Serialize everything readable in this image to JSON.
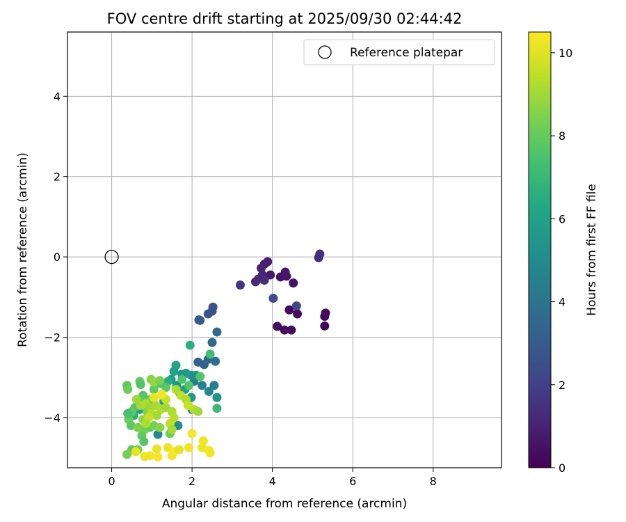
{
  "chart_data": {
    "type": "scatter",
    "title": "FOV centre drift starting at 2025/09/30 02:44:42",
    "xlabel": "Angular distance from reference (arcmin)",
    "ylabel": "Rotation from reference (arcmin)",
    "xlim": [
      -1.1,
      9.7
    ],
    "ylim": [
      -5.25,
      5.6
    ],
    "xticks": [
      0,
      2,
      4,
      6,
      8
    ],
    "yticks": [
      -4,
      -2,
      0,
      2,
      4
    ],
    "xtick_labels": [
      "0",
      "2",
      "4",
      "6",
      "8"
    ],
    "ytick_labels": [
      "−4",
      "−2",
      "0",
      "2",
      "4"
    ],
    "grid": true,
    "legend": {
      "position": "top-right",
      "entries": [
        "Reference platepar"
      ]
    },
    "reference_point": {
      "x": 0,
      "y": 0,
      "label": "Reference platepar"
    },
    "colorbar": {
      "label": "Hours from first FF file",
      "range": [
        0,
        10.5
      ],
      "ticks": [
        0,
        2,
        4,
        6,
        8,
        10
      ],
      "tick_labels": [
        "0",
        "2",
        "4",
        "6",
        "8",
        "10"
      ],
      "colormap": "viridis"
    },
    "points": [
      {
        "x": 5.3,
        "y": -1.72,
        "hours": 0.1
      },
      {
        "x": 5.3,
        "y": -1.48,
        "hours": 0.15
      },
      {
        "x": 5.32,
        "y": -1.4,
        "hours": 0.2
      },
      {
        "x": 4.62,
        "y": -1.42,
        "hours": 0.2
      },
      {
        "x": 4.42,
        "y": -1.32,
        "hours": 0.25
      },
      {
        "x": 4.47,
        "y": -1.82,
        "hours": 0.3
      },
      {
        "x": 4.3,
        "y": -1.82,
        "hours": 0.3
      },
      {
        "x": 4.12,
        "y": -1.73,
        "hours": 0.35
      },
      {
        "x": 4.52,
        "y": -0.65,
        "hours": 0.5
      },
      {
        "x": 4.35,
        "y": -0.48,
        "hours": 0.6
      },
      {
        "x": 4.32,
        "y": -0.38,
        "hours": 0.7
      },
      {
        "x": 4.2,
        "y": -0.5,
        "hours": 0.6
      },
      {
        "x": 3.95,
        "y": -0.45,
        "hours": 0.8
      },
      {
        "x": 3.88,
        "y": -0.12,
        "hours": 0.9
      },
      {
        "x": 3.8,
        "y": -0.18,
        "hours": 0.9
      },
      {
        "x": 3.72,
        "y": -0.28,
        "hours": 1.0
      },
      {
        "x": 3.75,
        "y": -0.45,
        "hours": 1.1
      },
      {
        "x": 3.65,
        "y": -0.55,
        "hours": 1.2
      },
      {
        "x": 3.58,
        "y": -0.62,
        "hours": 1.3
      },
      {
        "x": 3.8,
        "y": -0.58,
        "hours": 1.3
      },
      {
        "x": 5.18,
        "y": 0.07,
        "hours": 1.4
      },
      {
        "x": 5.15,
        "y": -0.02,
        "hours": 1.4
      },
      {
        "x": 3.2,
        "y": -0.7,
        "hours": 1.6
      },
      {
        "x": 4.6,
        "y": -1.22,
        "hours": 2.2
      },
      {
        "x": 4.02,
        "y": -1.03,
        "hours": 2.4
      },
      {
        "x": 2.52,
        "y": -1.25,
        "hours": 2.6
      },
      {
        "x": 2.5,
        "y": -1.35,
        "hours": 2.6
      },
      {
        "x": 2.4,
        "y": -1.42,
        "hours": 2.8
      },
      {
        "x": 2.17,
        "y": -1.57,
        "hours": 2.9
      },
      {
        "x": 2.2,
        "y": -1.58,
        "hours": 3.0
      },
      {
        "x": 2.62,
        "y": -1.87,
        "hours": 3.6
      },
      {
        "x": 2.5,
        "y": -2.13,
        "hours": 3.5
      },
      {
        "x": 2.3,
        "y": -2.68,
        "hours": 3.2
      },
      {
        "x": 2.15,
        "y": -2.62,
        "hours": 3.4
      },
      {
        "x": 2.4,
        "y": -2.55,
        "hours": 3.6
      },
      {
        "x": 2.58,
        "y": -2.6,
        "hours": 3.8
      },
      {
        "x": 2.25,
        "y": -3.2,
        "hours": 4.6
      },
      {
        "x": 2.42,
        "y": -3.35,
        "hours": 4.8
      },
      {
        "x": 2.55,
        "y": -3.2,
        "hours": 4.5
      },
      {
        "x": 2.62,
        "y": -3.5,
        "hours": 5.3
      },
      {
        "x": 2.1,
        "y": -2.95,
        "hours": 5.2
      },
      {
        "x": 2.05,
        "y": -3.1,
        "hours": 4.4
      },
      {
        "x": 1.98,
        "y": -2.95,
        "hours": 5.2
      },
      {
        "x": 1.85,
        "y": -2.9,
        "hours": 5.7
      },
      {
        "x": 1.75,
        "y": -2.92,
        "hours": 5.4
      },
      {
        "x": 1.6,
        "y": -2.7,
        "hours": 6.2
      },
      {
        "x": 1.55,
        "y": -2.85,
        "hours": 6.0
      },
      {
        "x": 1.48,
        "y": -3.05,
        "hours": 5.8
      },
      {
        "x": 1.4,
        "y": -3.1,
        "hours": 6.5
      },
      {
        "x": 1.62,
        "y": -3.2,
        "hours": 5.6
      },
      {
        "x": 1.7,
        "y": -3.4,
        "hours": 5.1
      },
      {
        "x": 1.82,
        "y": -3.3,
        "hours": 5.9
      },
      {
        "x": 1.98,
        "y": -3.5,
        "hours": 5.5
      },
      {
        "x": 2.0,
        "y": -3.8,
        "hours": 5.0
      },
      {
        "x": 1.65,
        "y": -4.2,
        "hours": 5.2
      },
      {
        "x": 1.15,
        "y": -4.42,
        "hours": 4.9
      },
      {
        "x": 0.45,
        "y": -4.0,
        "hours": 4.8
      },
      {
        "x": 0.7,
        "y": -3.8,
        "hours": 5.7
      },
      {
        "x": 0.55,
        "y": -3.95,
        "hours": 6.6
      },
      {
        "x": 1.3,
        "y": -3.6,
        "hours": 6.0
      },
      {
        "x": 1.95,
        "y": -2.2,
        "hours": 6.6
      },
      {
        "x": 2.45,
        "y": -2.42,
        "hours": 7.3
      },
      {
        "x": 2.62,
        "y": -3.77,
        "hours": 7.1
      },
      {
        "x": 2.2,
        "y": -2.98,
        "hours": 7.6
      },
      {
        "x": 1.92,
        "y": -3.2,
        "hours": 7.7
      },
      {
        "x": 1.75,
        "y": -3.05,
        "hours": 7.5
      },
      {
        "x": 1.35,
        "y": -3.25,
        "hours": 7.8
      },
      {
        "x": 1.2,
        "y": -3.15,
        "hours": 7.5
      },
      {
        "x": 1.05,
        "y": -3.3,
        "hours": 7.9
      },
      {
        "x": 0.95,
        "y": -3.55,
        "hours": 8.2
      },
      {
        "x": 0.78,
        "y": -3.45,
        "hours": 7.7
      },
      {
        "x": 0.68,
        "y": -3.6,
        "hours": 8.0
      },
      {
        "x": 0.58,
        "y": -3.75,
        "hours": 7.6
      },
      {
        "x": 0.5,
        "y": -3.85,
        "hours": 7.9
      },
      {
        "x": 0.42,
        "y": -4.05,
        "hours": 8.1
      },
      {
        "x": 0.48,
        "y": -4.2,
        "hours": 7.8
      },
      {
        "x": 0.4,
        "y": -3.9,
        "hours": 7.4
      },
      {
        "x": 0.38,
        "y": -3.2,
        "hours": 7.9
      },
      {
        "x": 0.4,
        "y": -3.3,
        "hours": 8.1
      },
      {
        "x": 0.7,
        "y": -3.1,
        "hours": 8.0
      },
      {
        "x": 0.72,
        "y": -3.18,
        "hours": 7.6
      },
      {
        "x": 0.98,
        "y": -3.05,
        "hours": 8.6
      },
      {
        "x": 1.05,
        "y": -3.12,
        "hours": 8.8
      },
      {
        "x": 1.2,
        "y": -3.08,
        "hours": 8.4
      },
      {
        "x": 0.88,
        "y": -3.85,
        "hours": 8.5
      },
      {
        "x": 0.78,
        "y": -4.05,
        "hours": 8.7
      },
      {
        "x": 0.65,
        "y": -4.25,
        "hours": 8.4
      },
      {
        "x": 0.82,
        "y": -4.3,
        "hours": 8.2
      },
      {
        "x": 0.95,
        "y": -4.25,
        "hours": 8.0
      },
      {
        "x": 1.05,
        "y": -4.2,
        "hours": 8.3
      },
      {
        "x": 1.2,
        "y": -4.25,
        "hours": 8.6
      },
      {
        "x": 1.45,
        "y": -4.4,
        "hours": 8.1
      },
      {
        "x": 0.75,
        "y": -4.45,
        "hours": 7.9
      },
      {
        "x": 0.8,
        "y": -4.6,
        "hours": 7.7
      },
      {
        "x": 0.65,
        "y": -4.8,
        "hours": 8.2
      },
      {
        "x": 0.5,
        "y": -4.8,
        "hours": 8.0
      },
      {
        "x": 0.38,
        "y": -4.92,
        "hours": 8.3
      },
      {
        "x": 0.62,
        "y": -3.55,
        "hours": 8.9
      },
      {
        "x": 0.72,
        "y": -3.7,
        "hours": 9.0
      },
      {
        "x": 0.85,
        "y": -3.65,
        "hours": 9.2
      },
      {
        "x": 0.95,
        "y": -3.75,
        "hours": 8.9
      },
      {
        "x": 1.1,
        "y": -3.7,
        "hours": 9.1
      },
      {
        "x": 1.22,
        "y": -3.8,
        "hours": 9.3
      },
      {
        "x": 1.35,
        "y": -3.75,
        "hours": 9.0
      },
      {
        "x": 1.5,
        "y": -3.85,
        "hours": 9.2
      },
      {
        "x": 1.55,
        "y": -4.0,
        "hours": 9.4
      },
      {
        "x": 1.45,
        "y": -4.15,
        "hours": 9.5
      },
      {
        "x": 1.5,
        "y": -4.3,
        "hours": 9.1
      },
      {
        "x": 1.0,
        "y": -3.9,
        "hours": 9.4
      },
      {
        "x": 1.12,
        "y": -3.95,
        "hours": 9.0
      },
      {
        "x": 0.92,
        "y": -4.0,
        "hours": 9.6
      },
      {
        "x": 0.85,
        "y": -4.15,
        "hours": 9.2
      },
      {
        "x": 1.6,
        "y": -3.3,
        "hours": 9.2
      },
      {
        "x": 1.72,
        "y": -3.45,
        "hours": 9.5
      },
      {
        "x": 1.85,
        "y": -3.55,
        "hours": 9.3
      },
      {
        "x": 1.9,
        "y": -3.7,
        "hours": 9.6
      },
      {
        "x": 2.05,
        "y": -3.8,
        "hours": 9.4
      },
      {
        "x": 2.15,
        "y": -3.85,
        "hours": 9.0
      },
      {
        "x": 1.25,
        "y": -3.45,
        "hours": 9.8
      },
      {
        "x": 1.05,
        "y": -3.5,
        "hours": 10.1
      },
      {
        "x": 1.35,
        "y": -3.55,
        "hours": 9.6
      },
      {
        "x": 0.95,
        "y": -4.95,
        "hours": 10.3
      },
      {
        "x": 0.82,
        "y": -4.97,
        "hours": 10.2
      },
      {
        "x": 1.15,
        "y": -4.98,
        "hours": 10.4
      },
      {
        "x": 1.5,
        "y": -4.95,
        "hours": 10.3
      },
      {
        "x": 1.4,
        "y": -4.75,
        "hours": 10.2
      },
      {
        "x": 1.55,
        "y": -4.85,
        "hours": 10.4
      },
      {
        "x": 1.68,
        "y": -4.8,
        "hours": 10.1
      },
      {
        "x": 1.92,
        "y": -4.75,
        "hours": 10.3
      },
      {
        "x": 2.0,
        "y": -4.4,
        "hours": 10.4
      },
      {
        "x": 2.28,
        "y": -4.58,
        "hours": 10.3
      },
      {
        "x": 2.25,
        "y": -4.75,
        "hours": 10.2
      },
      {
        "x": 2.42,
        "y": -4.82,
        "hours": 10.4
      },
      {
        "x": 2.45,
        "y": -4.88,
        "hours": 10.3
      },
      {
        "x": 1.12,
        "y": -4.78,
        "hours": 10.2
      },
      {
        "x": 0.6,
        "y": -4.85,
        "hours": 10.1
      },
      {
        "x": 1.25,
        "y": -3.42,
        "hours": 10.3
      }
    ]
  }
}
